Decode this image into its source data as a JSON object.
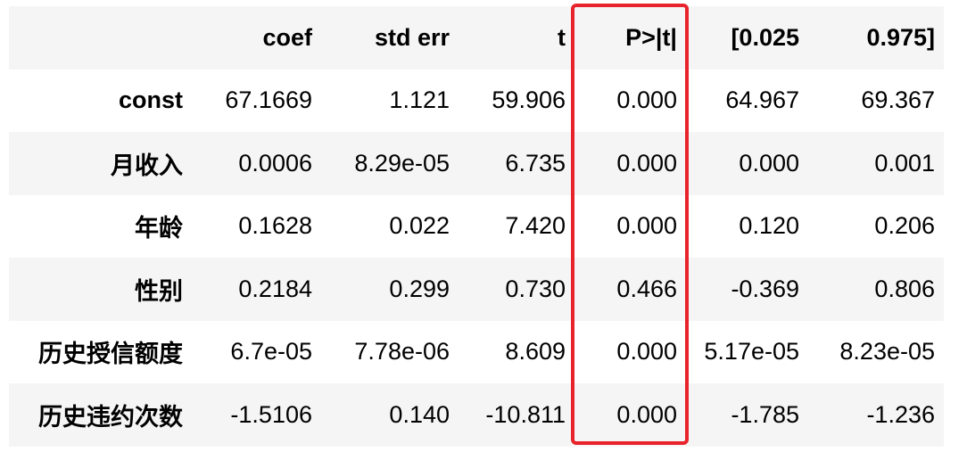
{
  "table": {
    "headers": [
      "",
      "coef",
      "std err",
      "t",
      "P>|t|",
      "[0.025",
      "0.975]"
    ],
    "rows": [
      {
        "label": "const",
        "values": [
          "67.1669",
          "1.121",
          "59.906",
          "0.000",
          "64.967",
          "69.367"
        ]
      },
      {
        "label": "月收入",
        "values": [
          "0.0006",
          "8.29e-05",
          "6.735",
          "0.000",
          "0.000",
          "0.001"
        ]
      },
      {
        "label": "年龄",
        "values": [
          "0.1628",
          "0.022",
          "7.420",
          "0.000",
          "0.120",
          "0.206"
        ]
      },
      {
        "label": "性别",
        "values": [
          "0.2184",
          "0.299",
          "0.730",
          "0.466",
          "-0.369",
          "0.806"
        ]
      },
      {
        "label": "历史授信额度",
        "values": [
          "6.7e-05",
          "7.78e-06",
          "8.609",
          "0.000",
          "5.17e-05",
          "8.23e-05"
        ]
      },
      {
        "label": "历史违约次数",
        "values": [
          "-1.5106",
          "0.140",
          "-10.811",
          "0.000",
          "-1.785",
          "-1.236"
        ]
      }
    ]
  },
  "highlight": {
    "column": "P>|t|",
    "color": "#e8232b"
  },
  "colors": {
    "stripe": "#f5f5f5",
    "text": "#000000"
  }
}
